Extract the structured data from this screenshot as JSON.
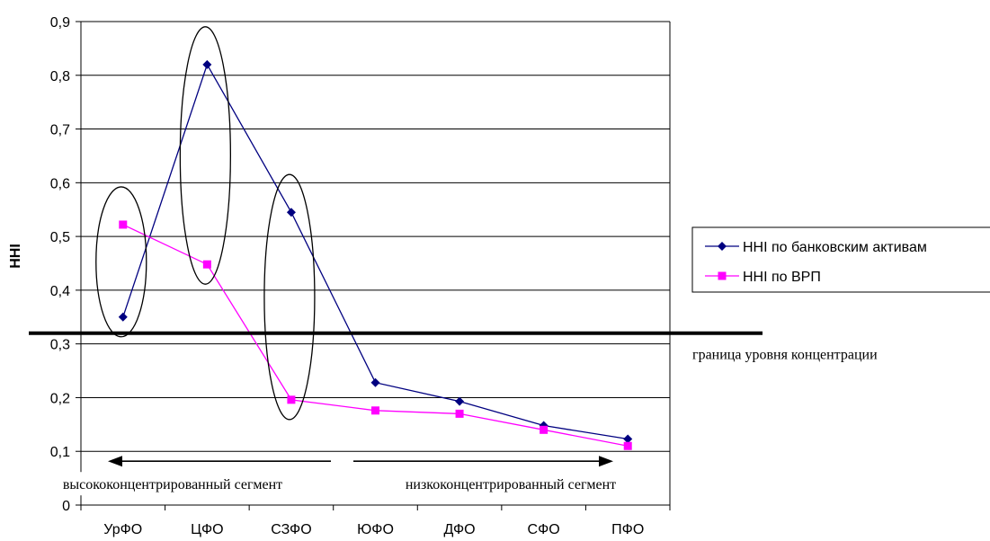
{
  "chart_data": {
    "type": "line",
    "title": "",
    "xlabel": "",
    "ylabel": "HHI",
    "ylim": [
      0,
      0.9
    ],
    "yticks": [
      "0",
      "0,1",
      "0,2",
      "0,3",
      "0,4",
      "0,5",
      "0,6",
      "0,7",
      "0,8",
      "0,9"
    ],
    "categories": [
      "УрФО",
      "ЦФО",
      "СЗФО",
      "ЮФО",
      "ДФО",
      "СФО",
      "ПФО"
    ],
    "series": [
      {
        "name": "HHI по банковским активам",
        "color": "#000080",
        "marker": "diamond",
        "values": [
          0.35,
          0.82,
          0.545,
          0.228,
          0.193,
          0.148,
          0.123
        ]
      },
      {
        "name": "HHI по ВРП",
        "color": "#ff00ff",
        "marker": "square",
        "values": [
          0.522,
          0.448,
          0.196,
          0.176,
          0.17,
          0.14,
          0.11
        ]
      }
    ],
    "threshold": {
      "value": 0.32,
      "label": "граница уровня концентрации"
    },
    "annotations": {
      "left_arrow": "высококонцентрированный сегмент",
      "right_arrow": "низкоконцентрированный сегмент"
    },
    "grid": true,
    "legend_position": "right"
  }
}
